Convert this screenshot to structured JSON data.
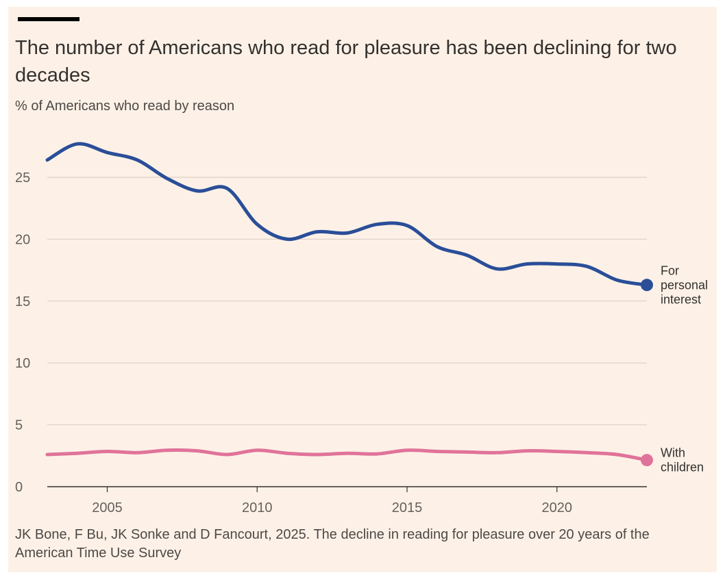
{
  "chart_data": {
    "type": "line",
    "title": "The number of Americans who read for pleasure has been declining for two decades",
    "subtitle": "% of Americans who read by reason",
    "source": "JK Bone, F Bu, JK Sonke and D Fancourt, 2025. The decline in reading for pleasure over 20 years of the American Time Use Survey",
    "xlim": [
      2003,
      2023
    ],
    "ylim": [
      0,
      28
    ],
    "x_ticks": [
      2005,
      2010,
      2015,
      2020
    ],
    "y_ticks": [
      0,
      5,
      10,
      15,
      20,
      25
    ],
    "grid": true,
    "x": [
      2003,
      2004,
      2005,
      2006,
      2007,
      2008,
      2009,
      2010,
      2011,
      2012,
      2013,
      2014,
      2015,
      2016,
      2017,
      2018,
      2019,
      2020,
      2021,
      2022,
      2023
    ],
    "series": [
      {
        "name": "For personal interest",
        "label_lines": [
          "For",
          "personal",
          "interest"
        ],
        "color": "#2a4e98",
        "values": [
          26.4,
          27.7,
          27.0,
          26.4,
          24.9,
          23.9,
          24.1,
          21.2,
          20.0,
          20.6,
          20.5,
          21.2,
          21.1,
          19.4,
          18.7,
          17.6,
          18.0,
          18.0,
          17.8,
          16.7,
          16.3
        ]
      },
      {
        "name": "With children",
        "label_lines": [
          "With",
          "children"
        ],
        "color": "#e07399",
        "values": [
          2.6,
          2.7,
          2.85,
          2.75,
          2.95,
          2.9,
          2.6,
          2.95,
          2.7,
          2.6,
          2.7,
          2.65,
          2.95,
          2.85,
          2.8,
          2.75,
          2.9,
          2.85,
          2.75,
          2.6,
          2.15
        ]
      }
    ]
  }
}
